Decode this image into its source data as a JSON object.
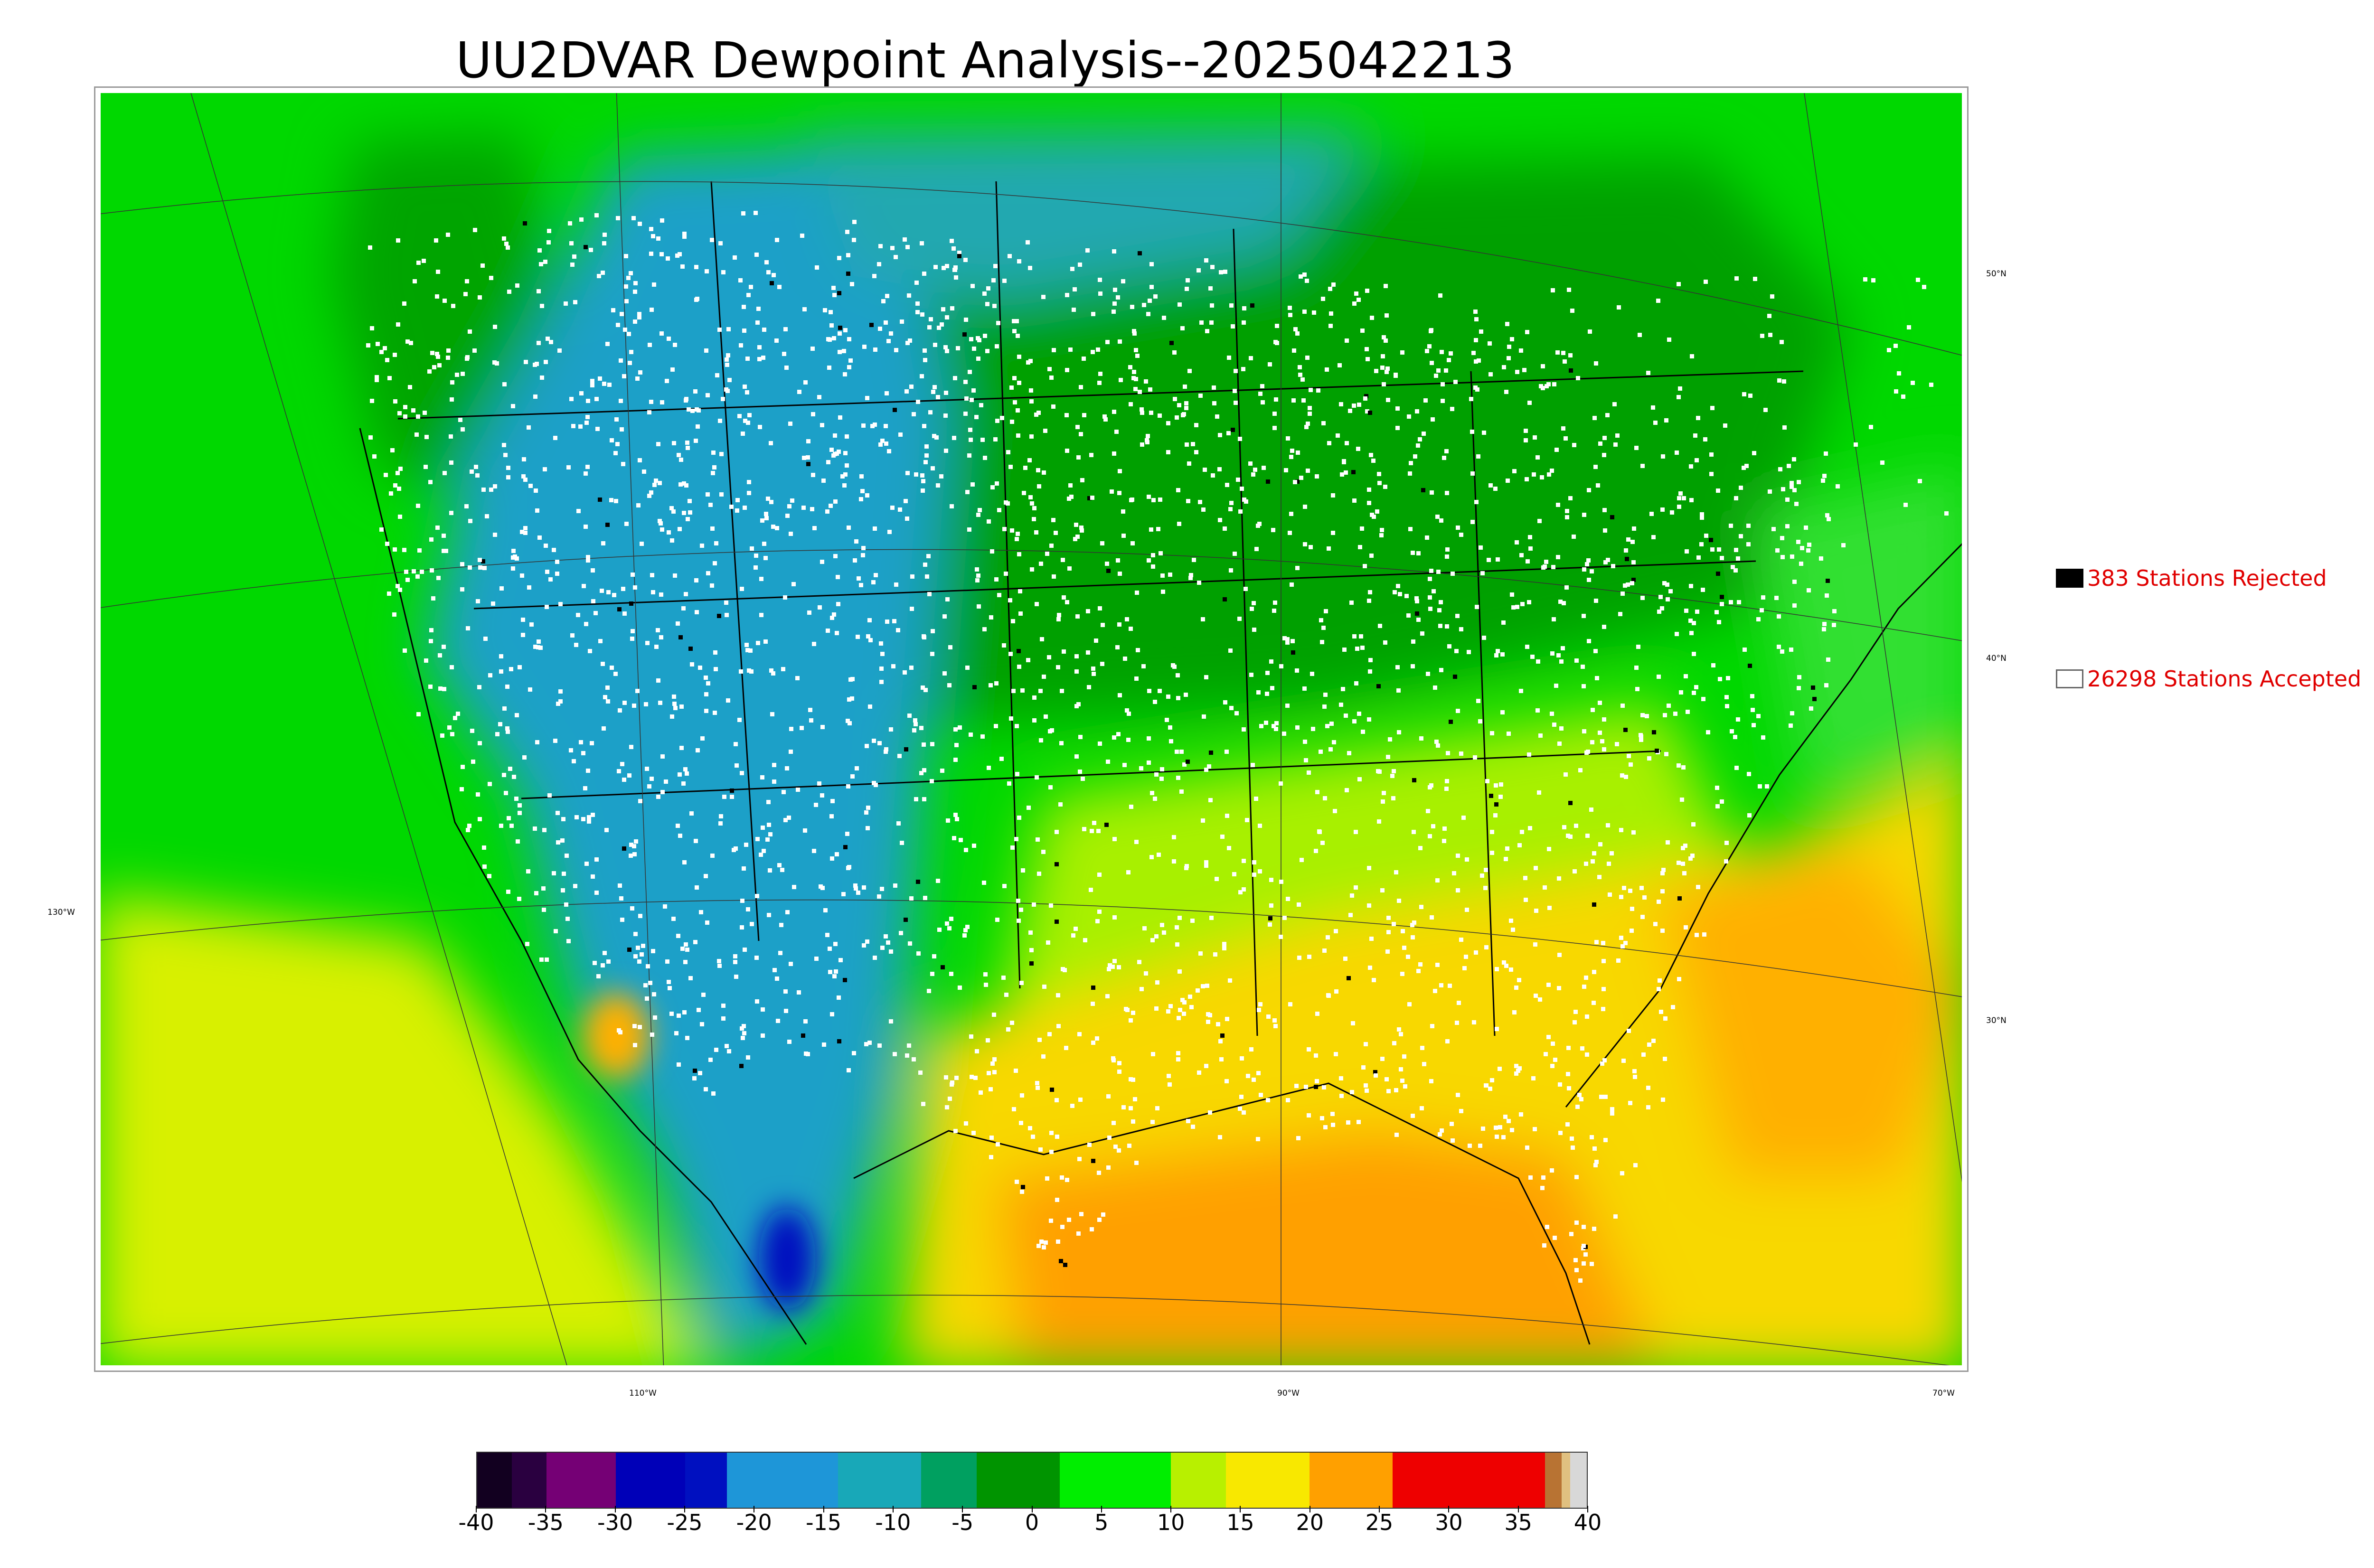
{
  "title": "UU2DVAR Dewpoint Analysis--2025042213",
  "map": {
    "lon_labels": [
      "130°W",
      "110°W",
      "90°W",
      "70°W"
    ],
    "lat_labels": [
      "50°N",
      "40°N",
      "30°N"
    ]
  },
  "legend": {
    "rejected": {
      "label": "383 Stations Rejected",
      "color": "#000000"
    },
    "accepted": {
      "label": "26298 Stations Accepted",
      "color": "#ffffff"
    }
  },
  "colorbar": {
    "min": -40,
    "max": 40,
    "tick_labels": [
      "-40",
      "-35",
      "-30",
      "-25",
      "-20",
      "-15",
      "-10",
      "-5",
      "0",
      "5",
      "10",
      "15",
      "20",
      "25",
      "30",
      "35",
      "40"
    ],
    "segments": [
      {
        "from": -40,
        "to": -37.5,
        "color": "#120020"
      },
      {
        "from": -37.5,
        "to": -35,
        "color": "#2a0040"
      },
      {
        "from": -35,
        "to": -30,
        "color": "#750075"
      },
      {
        "from": -30,
        "to": -25,
        "color": "#0000b8"
      },
      {
        "from": -25,
        "to": -22,
        "color": "#0010c0"
      },
      {
        "from": -22,
        "to": -14,
        "color": "#1e96d8"
      },
      {
        "from": -14,
        "to": -8,
        "color": "#18a8b8"
      },
      {
        "from": -8,
        "to": -4,
        "color": "#00a060"
      },
      {
        "from": -4,
        "to": 2,
        "color": "#009400"
      },
      {
        "from": 2,
        "to": 10,
        "color": "#00ee00"
      },
      {
        "from": 10,
        "to": 14,
        "color": "#b8f000"
      },
      {
        "from": 14,
        "to": 20,
        "color": "#f8e800"
      },
      {
        "from": 20,
        "to": 26,
        "color": "#ffa000"
      },
      {
        "from": 26,
        "to": 37,
        "color": "#ee0000"
      },
      {
        "from": 37,
        "to": 38.2,
        "color": "#b87333"
      },
      {
        "from": 38.2,
        "to": 38.8,
        "color": "#e0c080"
      },
      {
        "from": 38.8,
        "to": 40,
        "color": "#d8d8d8"
      }
    ]
  },
  "colors": {
    "frame": "#9a9a9a",
    "legend_text": "#e00000",
    "station_accepted": "#ffffff",
    "station_rejected": "#000000"
  }
}
